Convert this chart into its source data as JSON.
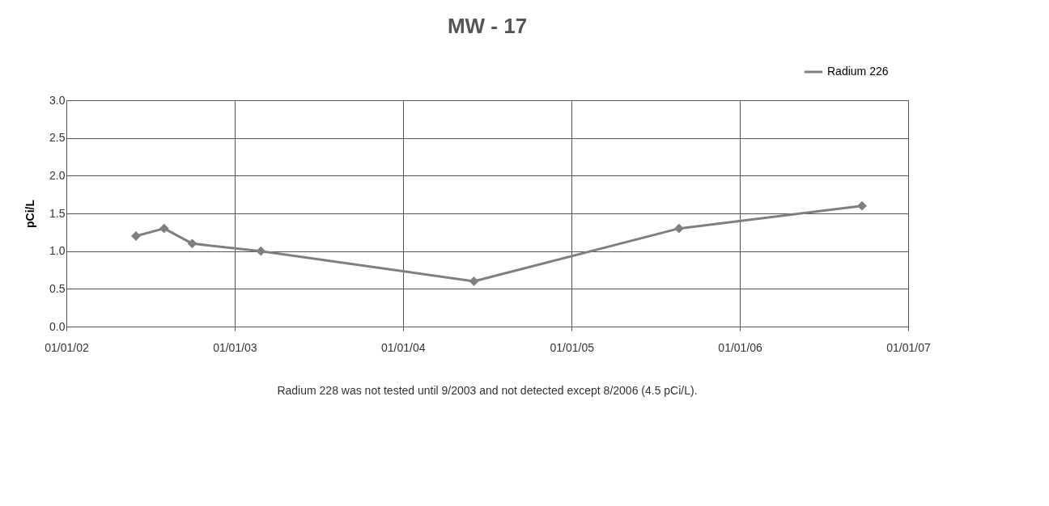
{
  "chart_data": {
    "type": "line",
    "title": "MW - 17",
    "ylabel": "pCi/L",
    "x": [
      "2002-06-01",
      "2002-08-01",
      "2002-10-01",
      "2003-02-27",
      "2004-06-03",
      "2005-08-22",
      "2006-09-23"
    ],
    "series": [
      {
        "name": "Radium 226",
        "color": "#7f7f7f",
        "values": [
          1.2,
          1.3,
          1.1,
          1.0,
          0.6,
          1.3,
          1.6
        ]
      }
    ],
    "xlim": [
      "2002-01-01",
      "2007-01-01"
    ],
    "xticks": [
      {
        "value": "2002-01-01",
        "label": "01/01/02"
      },
      {
        "value": "2003-01-01",
        "label": "01/01/03"
      },
      {
        "value": "2004-01-01",
        "label": "01/01/04"
      },
      {
        "value": "2005-01-01",
        "label": "01/01/05"
      },
      {
        "value": "2006-01-01",
        "label": "01/01/06"
      },
      {
        "value": "2007-01-01",
        "label": "01/01/07"
      }
    ],
    "ylim": [
      0,
      3.0
    ],
    "yticks": [
      {
        "value": 0,
        "label": "0.0"
      },
      {
        "value": 0.5,
        "label": "0.5"
      },
      {
        "value": 1.0,
        "label": "1.0"
      },
      {
        "value": 1.5,
        "label": "1.5"
      },
      {
        "value": 2.0,
        "label": "2.0"
      },
      {
        "value": 2.5,
        "label": "2.5"
      },
      {
        "value": 3.0,
        "label": "3.0"
      }
    ],
    "grid": true,
    "legend": "top right",
    "marker": "diamond",
    "line_style": "solid",
    "annotations": [
      "Radium 228 was not tested until 9/2003 and not detected except 8/2006 (4.5 pCi/L)."
    ]
  }
}
